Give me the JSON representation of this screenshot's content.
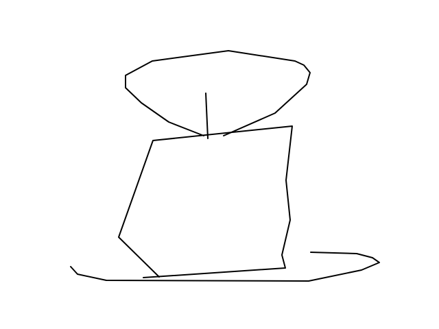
{
  "drawing": {
    "background_color": "#ffffff",
    "stroke_color": "#000000",
    "strokes": [
      {
        "name": "top-lobe-outline"
      },
      {
        "name": "top-lobe-right-curve"
      },
      {
        "name": "vertical-stem"
      },
      {
        "name": "body-outline"
      },
      {
        "name": "base-line"
      },
      {
        "name": "base-right-hook"
      }
    ]
  }
}
